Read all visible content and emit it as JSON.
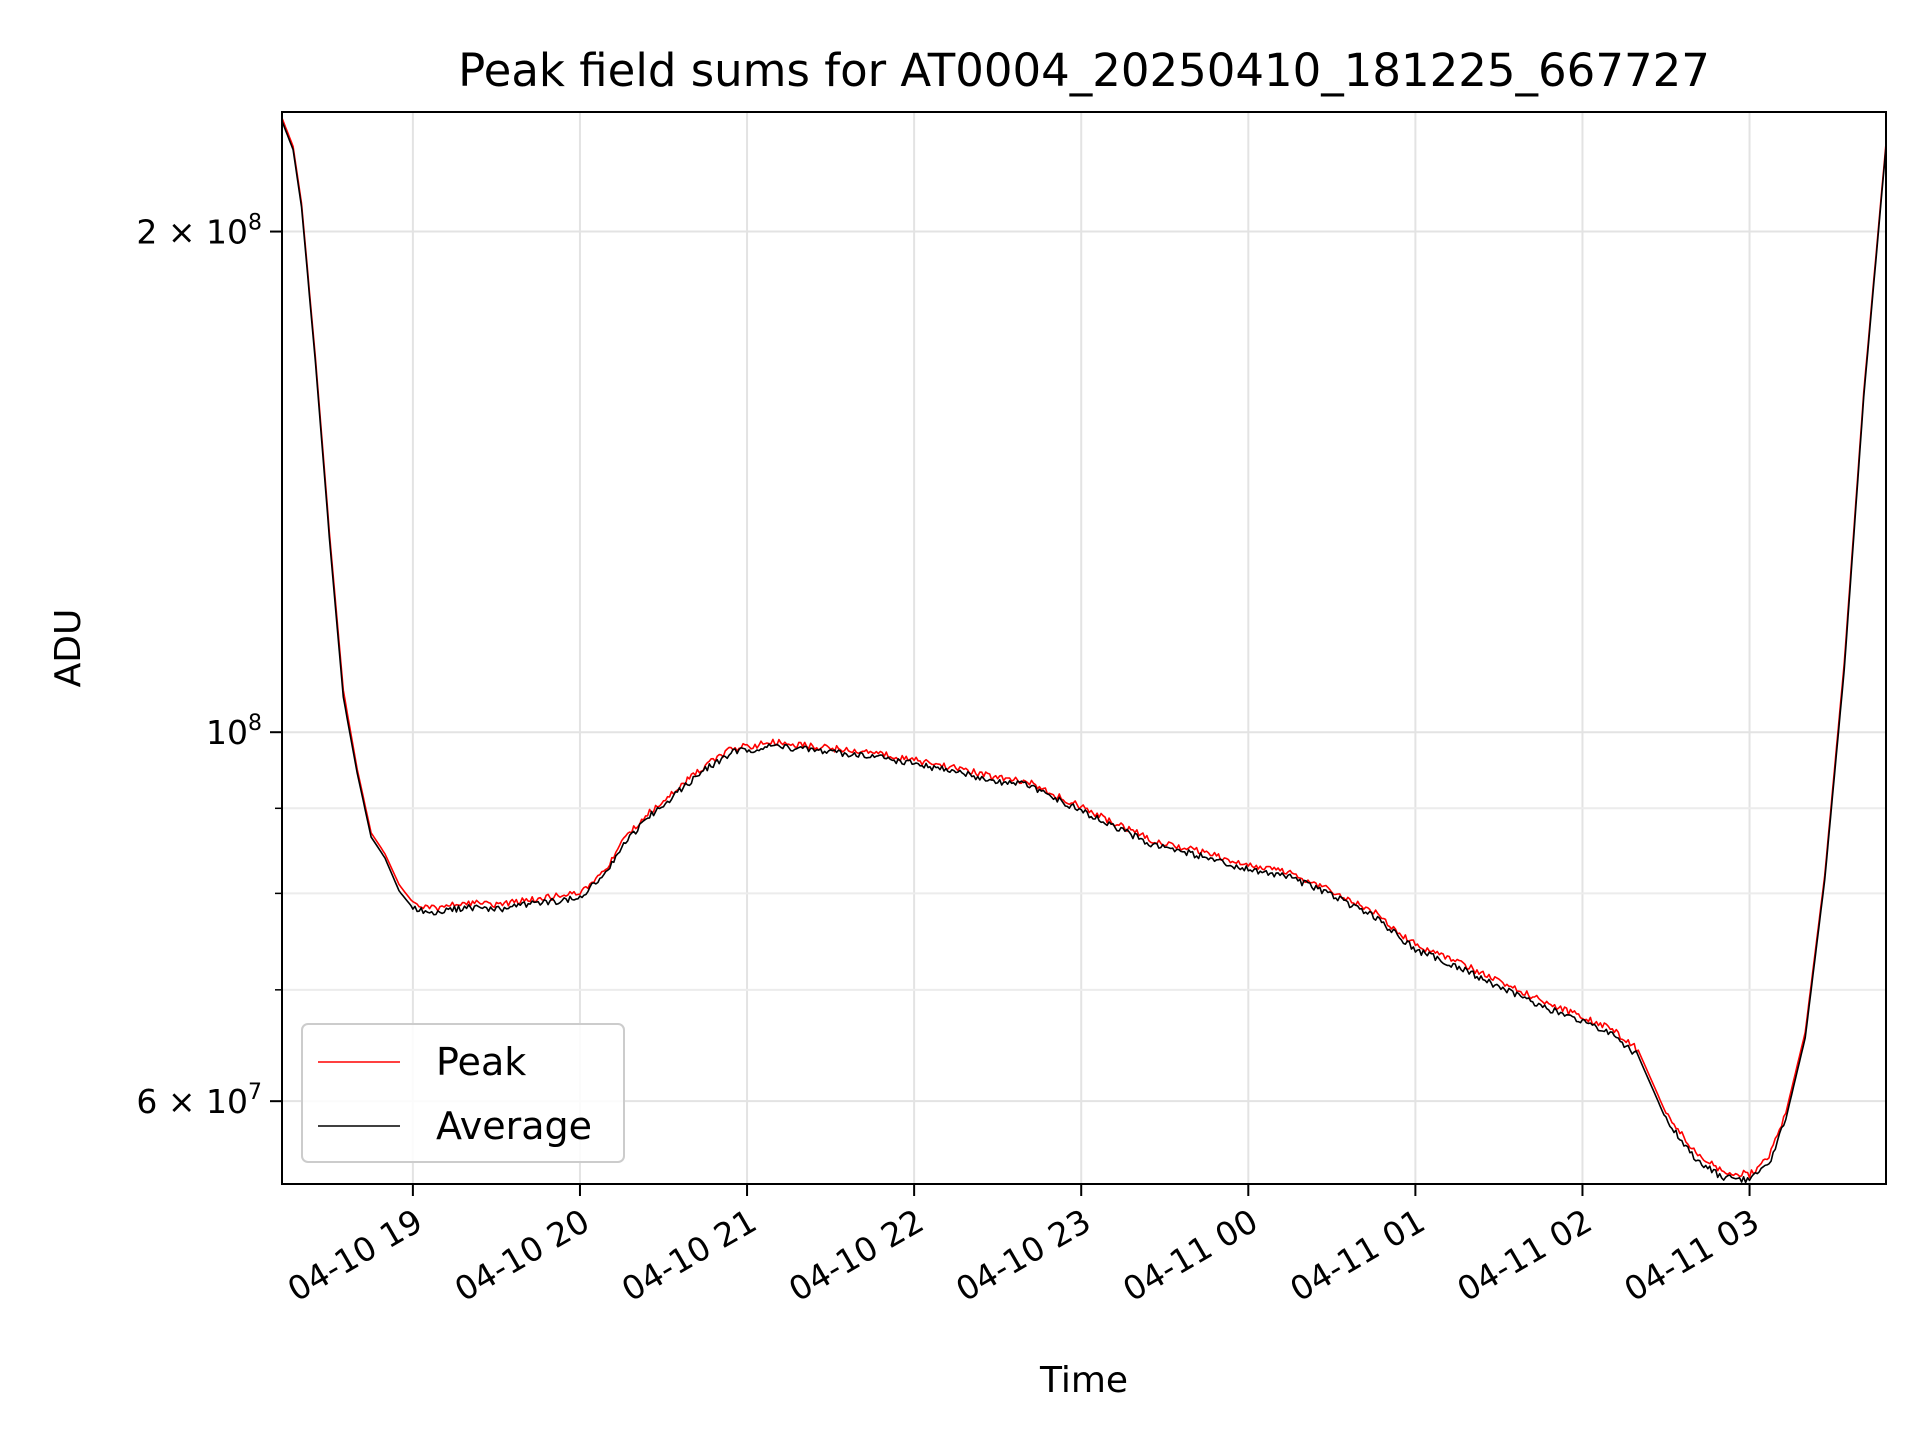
{
  "chart_data": {
    "type": "line",
    "title": "Peak field sums for AT0004_20250410_181225_667727",
    "xlabel": "Time",
    "ylabel": "ADU",
    "y_scale": "log",
    "ylim": [
      53500000,
      236000000
    ],
    "xlim": [
      "04-10 18:13",
      "04-11 03:49"
    ],
    "x_ticks": [
      "04-10 19",
      "04-10 20",
      "04-10 21",
      "04-10 22",
      "04-10 23",
      "04-11 00",
      "04-11 01",
      "04-11 02",
      "04-11 03"
    ],
    "y_ticks": [
      {
        "value": 200000000,
        "mant": "2",
        "exp": "8"
      },
      {
        "value": 100000000,
        "mant": "",
        "exp": "8"
      },
      {
        "value": 60000000,
        "mant": "6",
        "exp": "7"
      }
    ],
    "y_minor_ticks": [
      90000000,
      80000000,
      70000000
    ],
    "grid": true,
    "legend": {
      "position": "lower-left",
      "entries": [
        "Peak",
        "Average"
      ]
    },
    "x": [
      "04-10 18:13",
      "04-10 18:17",
      "04-10 18:20",
      "04-10 18:25",
      "04-10 18:30",
      "04-10 18:35",
      "04-10 18:40",
      "04-10 18:45",
      "04-10 18:50",
      "04-10 18:55",
      "04-10 19:00",
      "04-10 19:06",
      "04-10 19:12",
      "04-10 19:20",
      "04-10 19:30",
      "04-10 19:40",
      "04-10 19:50",
      "04-10 20:00",
      "04-10 20:10",
      "04-10 20:15",
      "04-10 20:25",
      "04-10 20:35",
      "04-10 20:45",
      "04-10 20:55",
      "04-10 21:10",
      "04-10 21:30",
      "04-10 21:45",
      "04-10 22:00",
      "04-10 22:15",
      "04-10 22:30",
      "04-10 22:40",
      "04-10 22:55",
      "04-10 23:10",
      "04-10 23:25",
      "04-10 23:40",
      "04-10 23:55",
      "04-11 00:15",
      "04-11 00:30",
      "04-11 00:45",
      "04-11 01:00",
      "04-11 01:15",
      "04-11 01:30",
      "04-11 01:45",
      "04-11 02:00",
      "04-11 02:10",
      "04-11 02:20",
      "04-11 02:30",
      "04-11 02:40",
      "04-11 02:50",
      "04-11 03:00",
      "04-11 03:07",
      "04-11 03:13",
      "04-11 03:20",
      "04-11 03:27",
      "04-11 03:34",
      "04-11 03:41",
      "04-11 03:49"
    ],
    "series": [
      {
        "name": "Peak",
        "color": "#ff0000",
        "values": [
          234000000,
          225000000,
          208000000,
          168000000,
          132000000,
          106000000,
          95000000,
          87000000,
          84500000,
          81000000,
          79000000,
          78300000,
          78600000,
          79000000,
          78700000,
          79200000,
          79600000,
          80000000,
          83000000,
          86000000,
          89500000,
          92500000,
          95500000,
          97800000,
          98600000,
          97800000,
          97300000,
          96200000,
          95200000,
          93800000,
          93500000,
          91000000,
          88500000,
          86200000,
          85000000,
          83600000,
          82300000,
          80300000,
          78000000,
          74500000,
          72800000,
          70800000,
          69000000,
          67400000,
          66400000,
          64400000,
          59000000,
          56000000,
          54500000,
          54200000,
          55500000,
          59000000,
          66000000,
          82000000,
          110000000,
          160000000,
          226000000
        ]
      },
      {
        "name": "Average",
        "color": "#000000",
        "values": [
          233000000,
          224000000,
          207000000,
          167000000,
          131000000,
          105000000,
          94500000,
          86500000,
          84000000,
          80300000,
          78400000,
          77800000,
          78100000,
          78500000,
          78200000,
          78700000,
          79100000,
          79500000,
          82500000,
          85500000,
          89000000,
          92000000,
          95000000,
          97300000,
          98100000,
          97300000,
          96800000,
          95700000,
          94700000,
          93300000,
          93000000,
          90500000,
          88000000,
          85700000,
          84500000,
          83100000,
          81800000,
          79800000,
          77500000,
          74000000,
          72300000,
          70300000,
          68500000,
          66900000,
          65900000,
          63900000,
          58500000,
          55500000,
          54000000,
          53800000,
          55000000,
          58500000,
          65500000,
          81500000,
          109000000,
          159000000,
          225000000
        ]
      }
    ]
  }
}
